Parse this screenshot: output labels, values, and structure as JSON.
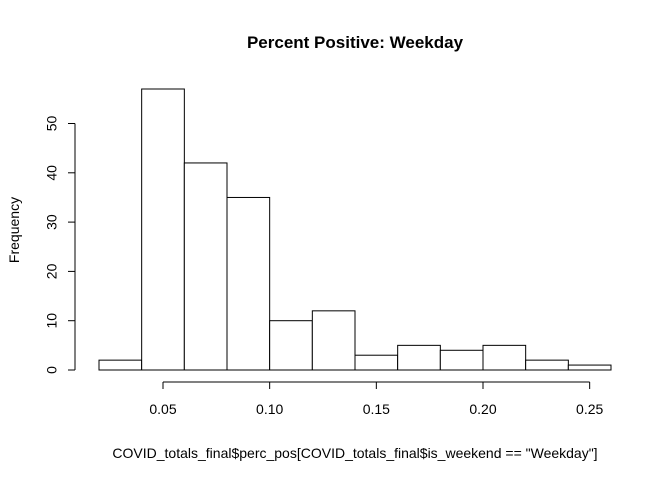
{
  "chart_data": {
    "type": "histogram",
    "title": "Percent Positive: Weekday",
    "xlabel": "COVID_totals_final$perc_pos[COVID_totals_final$is_weekend == \"Weekday\"]",
    "ylabel": "Frequency",
    "bins": [
      {
        "from": 0.02,
        "to": 0.04,
        "count": 2
      },
      {
        "from": 0.04,
        "to": 0.06,
        "count": 57
      },
      {
        "from": 0.06,
        "to": 0.08,
        "count": 42
      },
      {
        "from": 0.08,
        "to": 0.1,
        "count": 35
      },
      {
        "from": 0.1,
        "to": 0.12,
        "count": 10
      },
      {
        "from": 0.12,
        "to": 0.14,
        "count": 12
      },
      {
        "from": 0.14,
        "to": 0.16,
        "count": 3
      },
      {
        "from": 0.16,
        "to": 0.18,
        "count": 5
      },
      {
        "from": 0.18,
        "to": 0.2,
        "count": 4
      },
      {
        "from": 0.2,
        "to": 0.22,
        "count": 5
      },
      {
        "from": 0.22,
        "to": 0.24,
        "count": 2
      },
      {
        "from": 0.24,
        "to": 0.26,
        "count": 1
      }
    ],
    "xlim": [
      0.02,
      0.26
    ],
    "ylim": [
      0,
      57
    ],
    "x_ticks": [
      0.05,
      0.1,
      0.15,
      0.2,
      0.25
    ],
    "x_tick_labels": [
      "0.05",
      "0.10",
      "0.15",
      "0.20",
      "0.25"
    ],
    "y_ticks": [
      0,
      10,
      20,
      30,
      40,
      50
    ],
    "y_tick_labels": [
      "0",
      "10",
      "20",
      "30",
      "40",
      "50"
    ],
    "bar_fill": "#ffffff",
    "bar_stroke": "#000000",
    "grid": false,
    "legend": "none"
  }
}
